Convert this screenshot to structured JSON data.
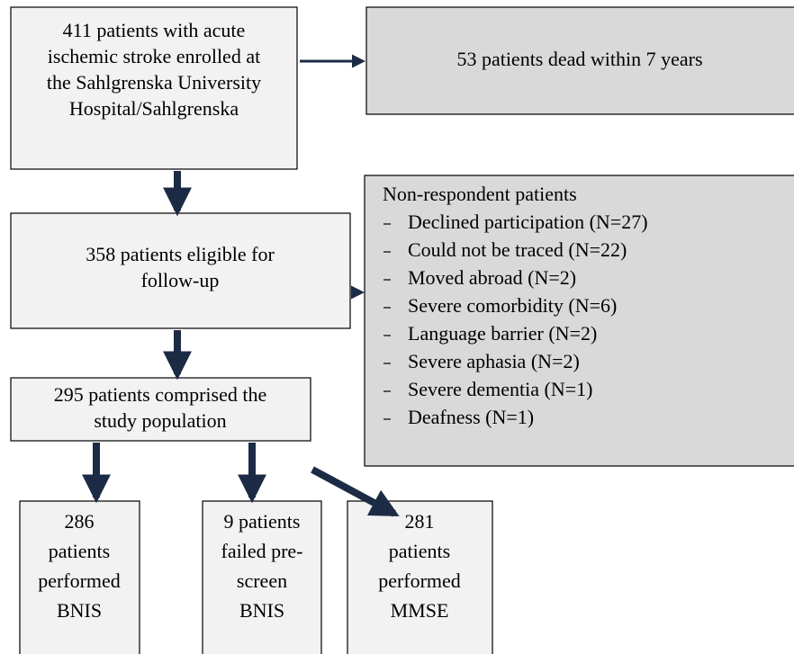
{
  "nodes": [
    {
      "lines": [
        "411 patients with acute",
        "ischemic stroke enrolled at",
        "the Sahlgrenska University",
        "Hospital/Sahlgrenska"
      ]
    },
    {
      "lines": [
        "53 patients dead within 7 years"
      ]
    },
    {
      "lines": [
        "358 patients eligible for",
        "follow-up"
      ]
    },
    {
      "title": "Non-respondent patients",
      "items": [
        "Declined participation (N=27)",
        "Could not be traced (N=22)",
        "Moved abroad (N=2)",
        "Severe comorbidity (N=6)",
        "Language barrier (N=2)",
        "Severe aphasia (N=2)",
        "Severe dementia (N=1)",
        "Deafness (N=1)"
      ]
    },
    {
      "lines": [
        "295 patients comprised the",
        "study population"
      ]
    },
    {
      "lines": [
        "286",
        "patients",
        "performed",
        "BNIS"
      ]
    },
    {
      "lines": [
        "9 patients",
        "failed pre-",
        "screen",
        "BNIS"
      ]
    },
    {
      "lines": [
        "281",
        "patients",
        "performed",
        "MMSE"
      ]
    }
  ]
}
